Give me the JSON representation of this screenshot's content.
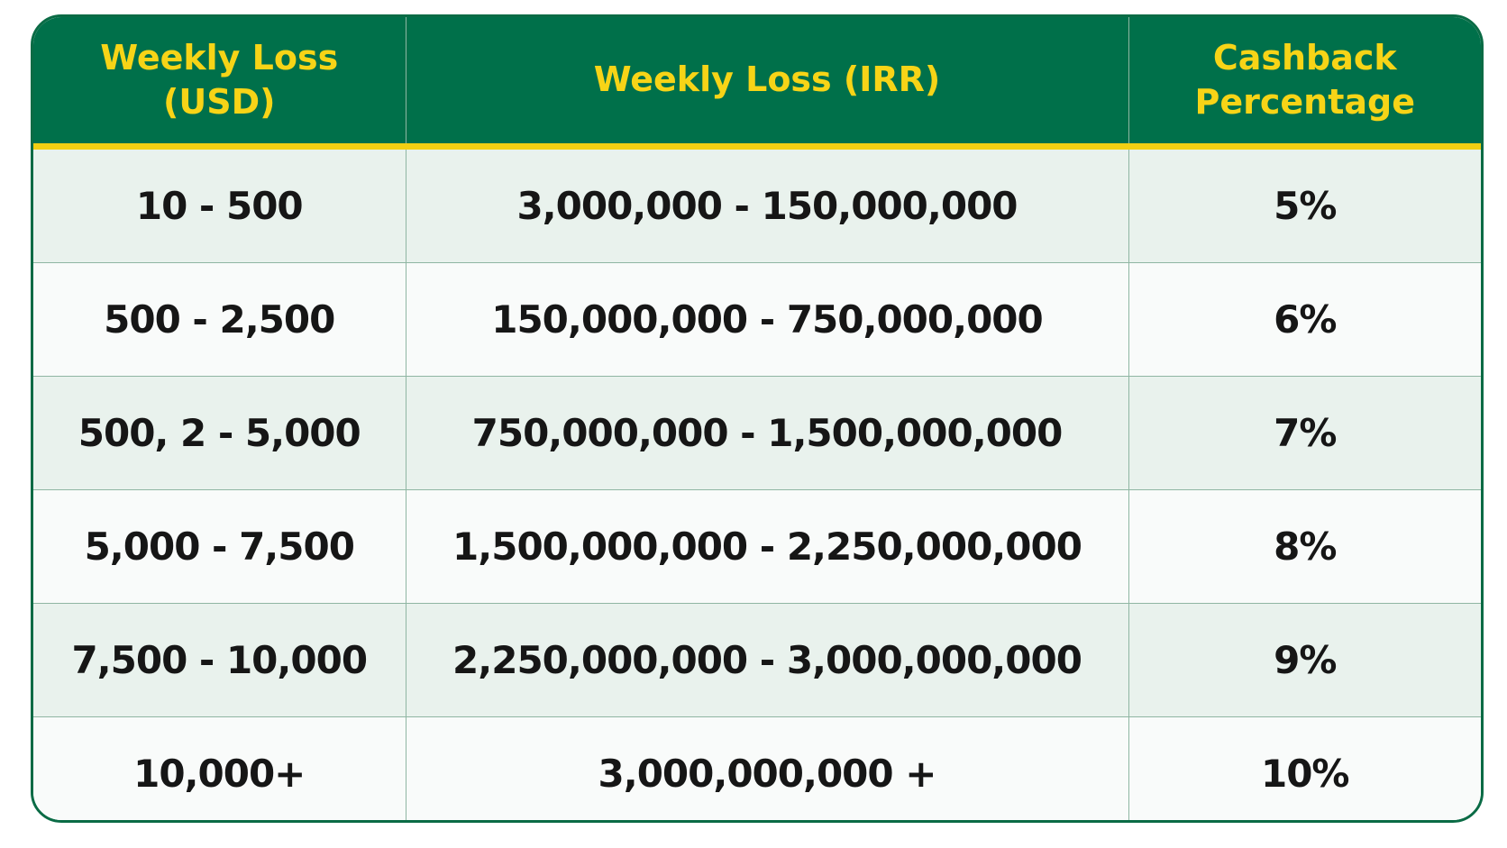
{
  "table": {
    "headers": [
      "Weekly Loss (USD)",
      "Weekly Loss (IRR)",
      "Cashback Percentage"
    ],
    "rows": [
      [
        "10 - 500",
        "3,000,000 - 150,000,000",
        "5%"
      ],
      [
        "500 - 2,500",
        "150,000,000 - 750,000,000",
        "6%"
      ],
      [
        "500, 2 - 5,000",
        "750,000,000 - 1,500,000,000",
        "7%"
      ],
      [
        "5,000 - 7,500",
        "1,500,000,000 - 2,250,000,000",
        "8%"
      ],
      [
        "7,500 - 10,000",
        "2,250,000,000 - 3,000,000,000",
        "9%"
      ],
      [
        "10,000+",
        "3,000,000,000 +",
        "10%"
      ]
    ]
  }
}
